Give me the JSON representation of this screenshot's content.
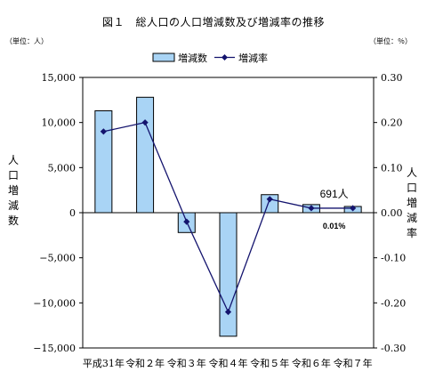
{
  "chart_data": {
    "type": "bar+line",
    "title": "図１　総人口の人口増減数及び増減率の推移",
    "unit_left": "（単位：人）",
    "unit_right": "（単位：％）",
    "ylabel_left": [
      "人",
      "口",
      "増",
      "減",
      "数"
    ],
    "ylabel_right": [
      "人",
      "口",
      "増",
      "減",
      "率"
    ],
    "categories": [
      "平成31年",
      "令和２年",
      "令和３年",
      "令和４年",
      "令和５年",
      "令和６年",
      "令和７年"
    ],
    "series": [
      {
        "name": "増減数",
        "type": "bar",
        "axis": "left",
        "color": "#a9d4f5",
        "values": [
          11300,
          12800,
          -2200,
          -13700,
          2000,
          900,
          691
        ]
      },
      {
        "name": "増減率",
        "type": "line",
        "axis": "right",
        "color": "#14146e",
        "values": [
          0.18,
          0.2,
          -0.02,
          -0.22,
          0.03,
          0.01,
          0.01
        ]
      }
    ],
    "y_left": {
      "min": -15000,
      "max": 15000,
      "step": 5000,
      "ticks": [
        "15,000",
        "10,000",
        "5,000",
        "0",
        "−5,000",
        "−10,000",
        "−15,000"
      ]
    },
    "y_right": {
      "min": -0.3,
      "max": 0.3,
      "step": 0.1,
      "ticks": [
        "0.30",
        "0.20",
        "0.10",
        "0.00",
        "-0.10",
        "-0.20",
        "-0.30"
      ]
    },
    "legend_position": "top",
    "annotations": [
      {
        "text": "691人",
        "category_index": 6
      },
      {
        "text": "0.01%",
        "category_index": 6
      }
    ]
  }
}
